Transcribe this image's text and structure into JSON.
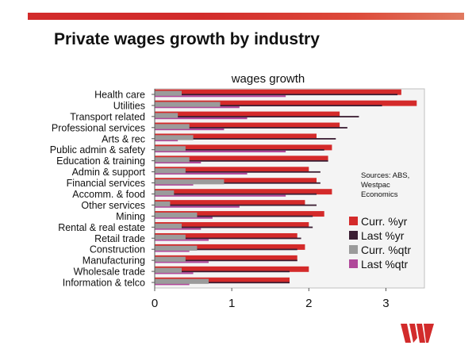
{
  "slide": {
    "title": "Private wages growth by industry",
    "source_note": [
      "Sources: ABS,",
      "Westpac",
      "Economics"
    ]
  },
  "colors": {
    "curr_yr": "#d42a2a",
    "last_yr": "#3b1e33",
    "curr_qtr": "#9b9b9b",
    "last_qtr": "#b0489a",
    "accent": "#d22b2b"
  },
  "chart_data": {
    "type": "bar",
    "orientation": "horizontal",
    "title": "wages growth",
    "xlabel": "",
    "ylabel": "",
    "xlim": [
      0,
      3.5
    ],
    "x_ticks": [
      0,
      1,
      2,
      3
    ],
    "legend_position": "right",
    "categories": [
      "Health care",
      "Utilities",
      "Transport related",
      "Professional services",
      "Arts & rec",
      "Public admin & safety",
      "Education & training",
      "Admin & support",
      "Financial services",
      "Accomm. & food",
      "Other services",
      "Mining",
      "Rental & real estate",
      "Retail trade",
      "Construction",
      "Manufacturing",
      "Wholesale trade",
      "Information & telco"
    ],
    "series": [
      {
        "name": "Curr. %yr",
        "values": [
          3.2,
          3.4,
          2.4,
          2.4,
          2.1,
          2.3,
          2.25,
          2.0,
          2.1,
          2.3,
          1.95,
          2.2,
          2.0,
          1.85,
          1.95,
          1.85,
          2.0,
          1.75
        ]
      },
      {
        "name": "Last %yr",
        "values": [
          3.15,
          2.95,
          2.65,
          2.5,
          2.35,
          2.2,
          2.25,
          2.15,
          2.15,
          2.1,
          2.1,
          2.05,
          2.05,
          1.9,
          1.85,
          1.85,
          1.75,
          1.75
        ]
      },
      {
        "name": "Curr. %qtr",
        "values": [
          0.35,
          0.85,
          0.3,
          0.45,
          0.5,
          0.4,
          0.45,
          0.4,
          0.9,
          0.25,
          0.2,
          0.55,
          0.35,
          0.4,
          0.55,
          0.4,
          0.35,
          0.7
        ]
      },
      {
        "name": "Last %qtr",
        "values": [
          1.7,
          1.1,
          1.2,
          0.9,
          0.3,
          1.7,
          0.6,
          1.2,
          0.5,
          1.7,
          1.1,
          0.75,
          0.6,
          0.7,
          0.45,
          0.7,
          0.5,
          0.45
        ]
      }
    ]
  }
}
